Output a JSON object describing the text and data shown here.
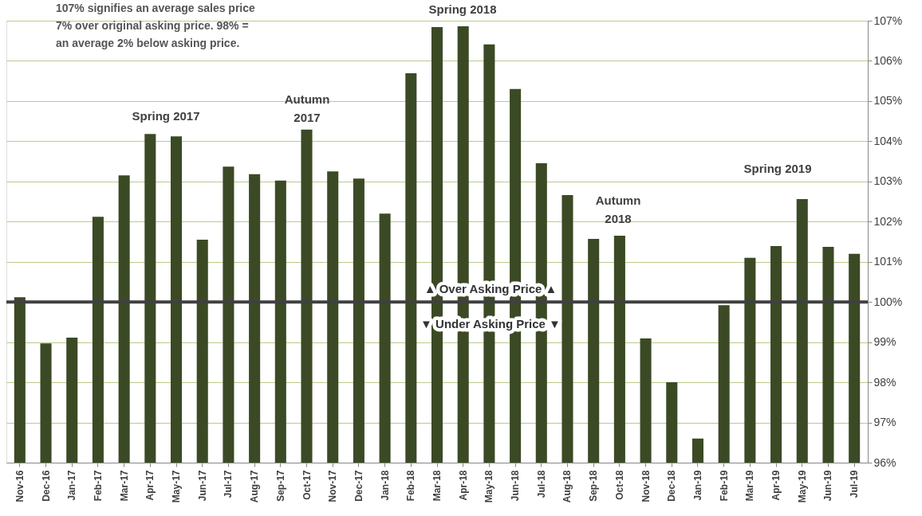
{
  "chart_data": {
    "type": "bar",
    "categories": [
      "Nov-16",
      "Dec-16",
      "Jan-17",
      "Feb-17",
      "Mar-17",
      "Apr-17",
      "May-17",
      "Jun-17",
      "Jul-17",
      "Aug-17",
      "Sep-17",
      "Oct-17",
      "Nov-17",
      "Dec-17",
      "Jan-18",
      "Feb-18",
      "Mar-18",
      "Apr-18",
      "May-18",
      "Jun-18",
      "Jul-18",
      "Aug-18",
      "Sep-18",
      "Oct-18",
      "Nov-18",
      "Dec-18",
      "Jan-19",
      "Feb-19",
      "Mar-19",
      "Apr-19",
      "May-19",
      "Jun-19",
      "Jul-19"
    ],
    "values": [
      100.12,
      98.97,
      99.11,
      102.12,
      103.15,
      104.18,
      104.12,
      101.55,
      103.37,
      103.18,
      103.02,
      104.29,
      103.25,
      103.07,
      102.2,
      105.69,
      106.84,
      106.86,
      106.41,
      105.3,
      103.45,
      102.66,
      101.57,
      101.65,
      99.09,
      98.0,
      96.6,
      99.92,
      101.1,
      101.39,
      102.56,
      101.37,
      101.2
    ],
    "color": "#3b4a25",
    "ylim": [
      96,
      107
    ],
    "yticks": [
      {
        "value": 96,
        "label": "96%"
      },
      {
        "value": 97,
        "label": "97%"
      },
      {
        "value": 98,
        "label": "98%"
      },
      {
        "value": 99,
        "label": "99%"
      },
      {
        "value": 100,
        "label": "100%"
      },
      {
        "value": 101,
        "label": "101%"
      },
      {
        "value": 102,
        "label": "102%"
      },
      {
        "value": 103,
        "label": "103%"
      },
      {
        "value": 104,
        "label": "104%"
      },
      {
        "value": 105,
        "label": "105%"
      },
      {
        "value": 106,
        "label": "106%"
      },
      {
        "value": 107,
        "label": "107%"
      }
    ],
    "grid": "y",
    "ref_lines": [
      {
        "axis": "y",
        "value": 100,
        "color": "#404040"
      }
    ],
    "annotations": [
      "107% signifies an average sales price 7% over original asking price. 98% = an average 2% below asking price.",
      "Spring 2017",
      "Autumn 2017",
      "Spring 2018",
      "Autumn 2018",
      "Spring 2019",
      "▲ Over Asking Price ▲",
      "▼ Under Asking Price ▼"
    ]
  }
}
